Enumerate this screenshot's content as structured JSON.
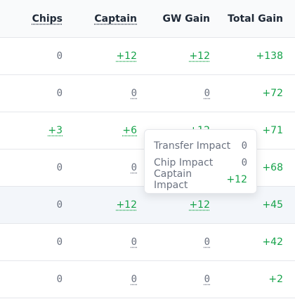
{
  "headers": {
    "chips": "Chips",
    "captain": "Captain",
    "gw_gain": "GW Gain",
    "total_gain": "Total Gain"
  },
  "rows": [
    {
      "chips": "0",
      "captain": "+12",
      "gw_gain": "+12",
      "total_gain": "+138"
    },
    {
      "chips": "0",
      "captain": "0",
      "gw_gain": "0",
      "total_gain": "+72"
    },
    {
      "chips": "+3",
      "captain": "+6",
      "gw_gain": "+12",
      "total_gain": "+71"
    },
    {
      "chips": "0",
      "captain": "0",
      "gw_gain": "",
      "total_gain": "+68"
    },
    {
      "chips": "0",
      "captain": "+12",
      "gw_gain": "+12",
      "total_gain": "+45"
    },
    {
      "chips": "0",
      "captain": "0",
      "gw_gain": "0",
      "total_gain": "+42"
    },
    {
      "chips": "0",
      "captain": "0",
      "gw_gain": "0",
      "total_gain": "+2"
    }
  ],
  "tooltip": {
    "transfer_label": "Transfer Impact",
    "transfer_value": "0",
    "chip_label": "Chip Impact",
    "chip_value": "0",
    "captain_label": "Captain Impact",
    "captain_value": "+12"
  },
  "colors": {
    "positive": "#16a34a",
    "neutral": "#6b7280",
    "header_text": "#1f2937"
  }
}
